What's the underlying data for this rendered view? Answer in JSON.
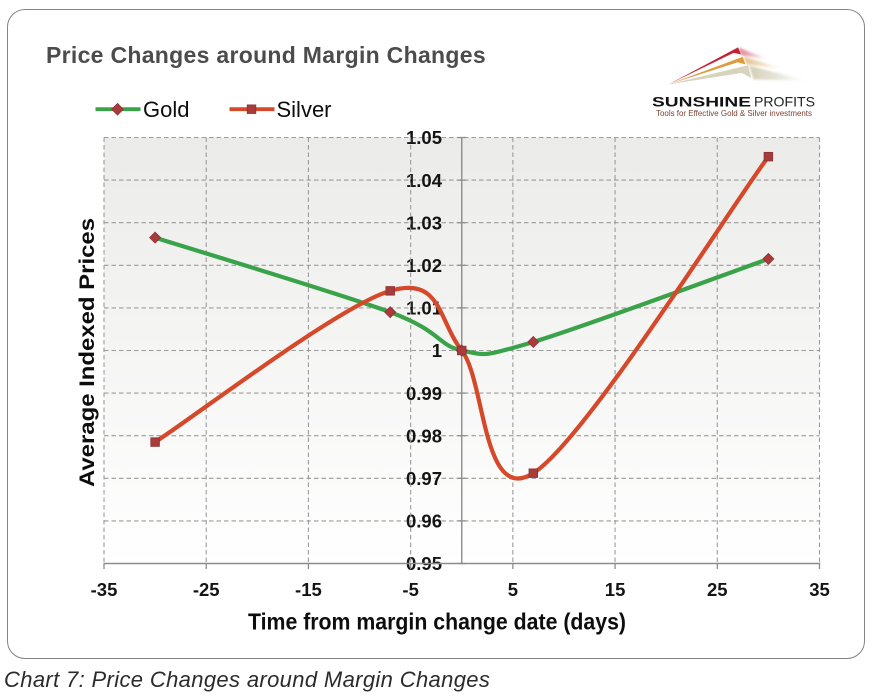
{
  "logo": {
    "brand_bold": "SUNSHINE",
    "brand_regular": "PROFITS",
    "tagline": "Tools for Effective Gold & Silver investments",
    "colors": {
      "spike_red": "#c32136",
      "spike_gold": "#dd9d3e",
      "spike_beige": "#d8d3bc",
      "tagline": "#7b4434",
      "brand": "#1a1a1a"
    }
  },
  "chart_data": {
    "type": "line",
    "title": "Price Changes around Margin Changes",
    "caption": "Chart 7: Price Changes around Margin Changes",
    "xlabel": "Time from margin change date (days)",
    "ylabel": "Average Indexed Prices",
    "x": [
      -30,
      -7,
      0,
      7,
      30
    ],
    "series": [
      {
        "name": "Gold",
        "marker": "diamond",
        "color": "#3aa34a",
        "values": [
          1.0265,
          1.009,
          1.0,
          1.002,
          1.0215
        ]
      },
      {
        "name": "Silver",
        "marker": "square",
        "color": "#d5492a",
        "values": [
          0.9785,
          1.014,
          1.0,
          0.9712,
          1.0455
        ]
      }
    ],
    "marker_color": "#a93b3c",
    "xlim": [
      -35,
      35
    ],
    "ylim": [
      0.95,
      1.05
    ],
    "x_ticks": [
      -35,
      -25,
      -15,
      -5,
      5,
      15,
      25,
      35
    ],
    "y_ticks": [
      1.05,
      1.04,
      1.03,
      1.02,
      1.01,
      1,
      0.99,
      0.98,
      0.97,
      0.96,
      0.95
    ],
    "grid": "dashed",
    "legend_position": "top-left",
    "plot_bg_top": "#ebebe9",
    "plot_bg_bottom": "#ffffff",
    "gridline_color": "#9b9b9b",
    "axis_color": "#8c8c8c",
    "tick_label_color": "#141414",
    "smooth": true
  }
}
